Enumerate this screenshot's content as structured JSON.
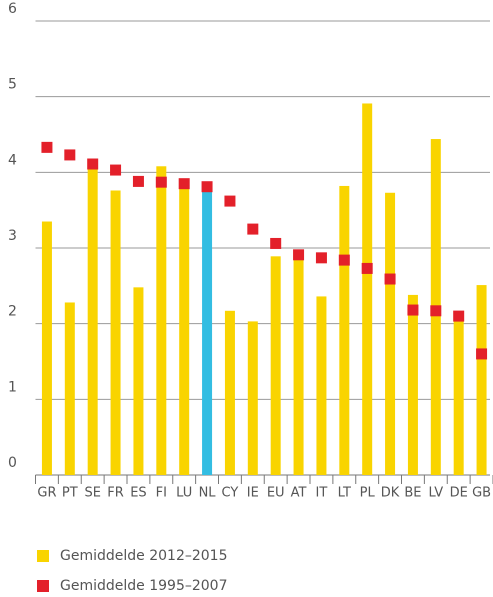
{
  "chart_data": {
    "type": "bar",
    "categories": [
      "GR",
      "PT",
      "SE",
      "FR",
      "ES",
      "FI",
      "LU",
      "NL",
      "CY",
      "IE",
      "EU",
      "AT",
      "IT",
      "LT",
      "PL",
      "DK",
      "BE",
      "LV",
      "DE",
      "GB"
    ],
    "series": [
      {
        "name": "Gemiddelde 2012–2015",
        "type": "bar",
        "color": "#f9d400",
        "colors": [
          "#f9d400",
          "#f9d400",
          "#f9d400",
          "#f9d400",
          "#f9d400",
          "#f9d400",
          "#f9d400",
          "#33bde2",
          "#f9d400",
          "#f9d400",
          "#f9d400",
          "#f9d400",
          "#f9d400",
          "#f9d400",
          "#f9d400",
          "#f9d400",
          "#f9d400",
          "#f9d400",
          "#f9d400",
          "#f9d400"
        ],
        "values": [
          3.35,
          2.28,
          4.05,
          3.76,
          2.48,
          4.08,
          3.85,
          3.76,
          2.17,
          2.03,
          2.89,
          2.88,
          2.36,
          3.82,
          4.91,
          3.73,
          2.38,
          4.44,
          2.05,
          2.51
        ]
      },
      {
        "name": "Gemiddelde 1995–2007",
        "type": "marker",
        "color": "#e3202a",
        "values": [
          4.33,
          4.23,
          4.11,
          4.03,
          3.88,
          3.87,
          3.85,
          3.81,
          3.62,
          3.25,
          3.06,
          2.91,
          2.87,
          2.84,
          2.73,
          2.59,
          2.18,
          2.17,
          2.1,
          1.6
        ]
      }
    ],
    "ylim": [
      0,
      6
    ],
    "yticks": [
      0,
      1,
      2,
      3,
      4,
      5,
      6
    ],
    "grid": true
  }
}
